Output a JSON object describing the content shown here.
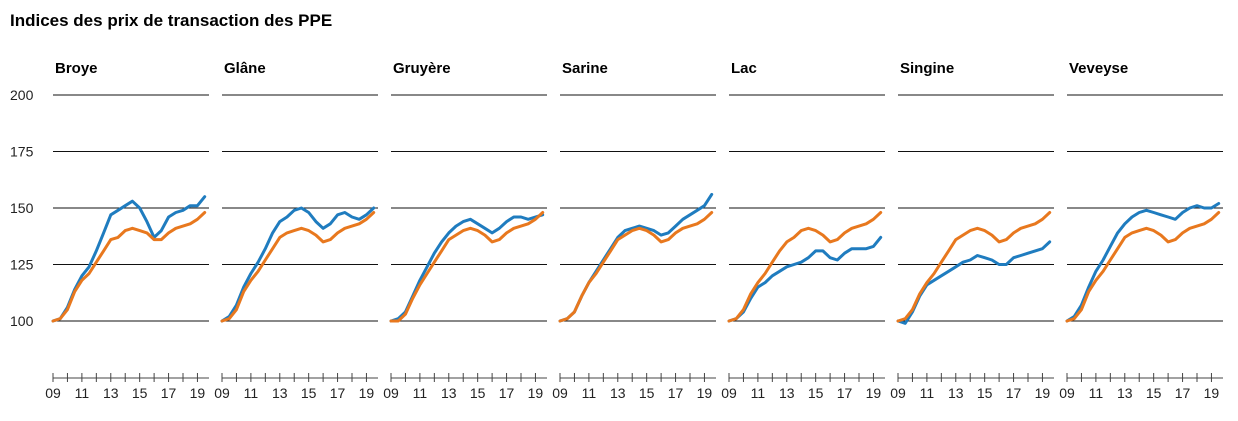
{
  "chart_data": {
    "type": "line",
    "title": "Indices des prix de transaction des PPE",
    "ylim": [
      80,
      205
    ],
    "yticks": [
      100,
      125,
      150,
      175,
      200
    ],
    "xlim": [
      2009,
      2019.8
    ],
    "xticks": [
      2009,
      2010,
      2011,
      2012,
      2013,
      2014,
      2015,
      2016,
      2017,
      2018,
      2019
    ],
    "xtick_labels": [
      "09",
      "",
      "11",
      "",
      "13",
      "",
      "15",
      "",
      "17",
      "",
      "19"
    ],
    "grid": true,
    "series_colors": [
      "#1f7cbf",
      "#e8781e"
    ],
    "panels": [
      {
        "title": "Broye",
        "series": [
          {
            "color": "#1f7cbf",
            "x": [
              2009,
              2009.5,
              2010,
              2010.5,
              2011,
              2011.5,
              2012,
              2012.5,
              2013,
              2013.5,
              2014,
              2014.5,
              2015,
              2015.5,
              2016,
              2016.5,
              2017,
              2017.5,
              2018,
              2018.5,
              2019,
              2019.5
            ],
            "y": [
              100,
              101,
              106,
              114,
              120,
              124,
              131,
              139,
              147,
              149,
              151,
              153,
              150,
              144,
              137,
              140,
              146,
              148,
              149,
              151,
              151,
              155
            ]
          },
          {
            "color": "#e8781e",
            "x": [
              2009,
              2009.5,
              2010,
              2010.5,
              2011,
              2011.5,
              2012,
              2012.5,
              2013,
              2013.5,
              2014,
              2014.5,
              2015,
              2015.5,
              2016,
              2016.5,
              2017,
              2017.5,
              2018,
              2018.5,
              2019,
              2019.5
            ],
            "y": [
              100,
              101,
              105,
              113,
              118,
              121,
              126,
              131,
              136,
              137,
              140,
              141,
              140,
              139,
              136,
              136,
              139,
              141,
              142,
              143,
              145,
              148
            ]
          }
        ]
      },
      {
        "title": "Glâne",
        "series": [
          {
            "color": "#1f7cbf",
            "x": [
              2009,
              2009.5,
              2010,
              2010.5,
              2011,
              2011.5,
              2012,
              2012.5,
              2013,
              2013.5,
              2014,
              2014.5,
              2015,
              2015.5,
              2016,
              2016.5,
              2017,
              2017.5,
              2018,
              2018.5,
              2019,
              2019.5
            ],
            "y": [
              100,
              102,
              107,
              115,
              121,
              126,
              132,
              139,
              144,
              146,
              149,
              150,
              148,
              144,
              141,
              143,
              147,
              148,
              146,
              145,
              147,
              150
            ]
          },
          {
            "color": "#e8781e",
            "x": [
              2009,
              2009.5,
              2010,
              2010.5,
              2011,
              2011.5,
              2012,
              2012.5,
              2013,
              2013.5,
              2014,
              2014.5,
              2015,
              2015.5,
              2016,
              2016.5,
              2017,
              2017.5,
              2018,
              2018.5,
              2019,
              2019.5
            ],
            "y": [
              100,
              101,
              105,
              113,
              118,
              122,
              127,
              132,
              137,
              139,
              140,
              141,
              140,
              138,
              135,
              136,
              139,
              141,
              142,
              143,
              145,
              148
            ]
          }
        ]
      },
      {
        "title": "Gruyère",
        "series": [
          {
            "color": "#1f7cbf",
            "x": [
              2009,
              2009.5,
              2010,
              2010.5,
              2011,
              2011.5,
              2012,
              2012.5,
              2013,
              2013.5,
              2014,
              2014.5,
              2015,
              2015.5,
              2016,
              2016.5,
              2017,
              2017.5,
              2018,
              2018.5,
              2019,
              2019.5
            ],
            "y": [
              100,
              101,
              104,
              111,
              118,
              124,
              130,
              135,
              139,
              142,
              144,
              145,
              143,
              141,
              139,
              141,
              144,
              146,
              146,
              145,
              146,
              147
            ]
          },
          {
            "color": "#e8781e",
            "x": [
              2009,
              2009.5,
              2010,
              2010.5,
              2011,
              2011.5,
              2012,
              2012.5,
              2013,
              2013.5,
              2014,
              2014.5,
              2015,
              2015.5,
              2016,
              2016.5,
              2017,
              2017.5,
              2018,
              2018.5,
              2019,
              2019.5
            ],
            "y": [
              100,
              100,
              103,
              110,
              116,
              121,
              126,
              131,
              136,
              138,
              140,
              141,
              140,
              138,
              135,
              136,
              139,
              141,
              142,
              143,
              145,
              148
            ]
          }
        ]
      },
      {
        "title": "Sarine",
        "series": [
          {
            "color": "#1f7cbf",
            "x": [
              2009,
              2009.5,
              2010,
              2010.5,
              2011,
              2011.5,
              2012,
              2012.5,
              2013,
              2013.5,
              2014,
              2014.5,
              2015,
              2015.5,
              2016,
              2016.5,
              2017,
              2017.5,
              2018,
              2018.5,
              2019,
              2019.5
            ],
            "y": [
              100,
              101,
              104,
              111,
              117,
              122,
              127,
              132,
              137,
              140,
              141,
              142,
              141,
              140,
              138,
              139,
              142,
              145,
              147,
              149,
              151,
              156
            ]
          },
          {
            "color": "#e8781e",
            "x": [
              2009,
              2009.5,
              2010,
              2010.5,
              2011,
              2011.5,
              2012,
              2012.5,
              2013,
              2013.5,
              2014,
              2014.5,
              2015,
              2015.5,
              2016,
              2016.5,
              2017,
              2017.5,
              2018,
              2018.5,
              2019,
              2019.5
            ],
            "y": [
              100,
              101,
              104,
              111,
              117,
              121,
              126,
              131,
              136,
              138,
              140,
              141,
              140,
              138,
              135,
              136,
              139,
              141,
              142,
              143,
              145,
              148
            ]
          }
        ]
      },
      {
        "title": "Lac",
        "series": [
          {
            "color": "#1f7cbf",
            "x": [
              2009,
              2009.5,
              2010,
              2010.5,
              2011,
              2011.5,
              2012,
              2012.5,
              2013,
              2013.5,
              2014,
              2014.5,
              2015,
              2015.5,
              2016,
              2016.5,
              2017,
              2017.5,
              2018,
              2018.5,
              2019,
              2019.5
            ],
            "y": [
              100,
              101,
              104,
              110,
              115,
              117,
              120,
              122,
              124,
              125,
              126,
              128,
              131,
              131,
              128,
              127,
              130,
              132,
              132,
              132,
              133,
              137
            ]
          },
          {
            "color": "#e8781e",
            "x": [
              2009,
              2009.5,
              2010,
              2010.5,
              2011,
              2011.5,
              2012,
              2012.5,
              2013,
              2013.5,
              2014,
              2014.5,
              2015,
              2015.5,
              2016,
              2016.5,
              2017,
              2017.5,
              2018,
              2018.5,
              2019,
              2019.5
            ],
            "y": [
              100,
              101,
              105,
              112,
              117,
              121,
              126,
              131,
              135,
              137,
              140,
              141,
              140,
              138,
              135,
              136,
              139,
              141,
              142,
              143,
              145,
              148
            ]
          }
        ]
      },
      {
        "title": "Singine",
        "series": [
          {
            "color": "#1f7cbf",
            "x": [
              2009,
              2009.5,
              2010,
              2010.5,
              2011,
              2011.5,
              2012,
              2012.5,
              2013,
              2013.5,
              2014,
              2014.5,
              2015,
              2015.5,
              2016,
              2016.5,
              2017,
              2017.5,
              2018,
              2018.5,
              2019,
              2019.5
            ],
            "y": [
              100,
              99,
              104,
              111,
              116,
              118,
              120,
              122,
              124,
              126,
              127,
              129,
              128,
              127,
              125,
              125,
              128,
              129,
              130,
              131,
              132,
              135
            ]
          },
          {
            "color": "#e8781e",
            "x": [
              2009,
              2009.5,
              2010,
              2010.5,
              2011,
              2011.5,
              2012,
              2012.5,
              2013,
              2013.5,
              2014,
              2014.5,
              2015,
              2015.5,
              2016,
              2016.5,
              2017,
              2017.5,
              2018,
              2018.5,
              2019,
              2019.5
            ],
            "y": [
              100,
              101,
              105,
              112,
              117,
              121,
              126,
              131,
              136,
              138,
              140,
              141,
              140,
              138,
              135,
              136,
              139,
              141,
              142,
              143,
              145,
              148
            ]
          }
        ]
      },
      {
        "title": "Veveyse",
        "series": [
          {
            "color": "#1f7cbf",
            "x": [
              2009,
              2009.5,
              2010,
              2010.5,
              2011,
              2011.5,
              2012,
              2012.5,
              2013,
              2013.5,
              2014,
              2014.5,
              2015,
              2015.5,
              2016,
              2016.5,
              2017,
              2017.5,
              2018,
              2018.5,
              2019,
              2019.5
            ],
            "y": [
              100,
              102,
              107,
              115,
              122,
              127,
              133,
              139,
              143,
              146,
              148,
              149,
              148,
              147,
              146,
              145,
              148,
              150,
              151,
              150,
              150,
              152
            ]
          },
          {
            "color": "#e8781e",
            "x": [
              2009,
              2009.5,
              2010,
              2010.5,
              2011,
              2011.5,
              2012,
              2012.5,
              2013,
              2013.5,
              2014,
              2014.5,
              2015,
              2015.5,
              2016,
              2016.5,
              2017,
              2017.5,
              2018,
              2018.5,
              2019,
              2019.5
            ],
            "y": [
              100,
              101,
              105,
              113,
              118,
              122,
              127,
              132,
              137,
              139,
              140,
              141,
              140,
              138,
              135,
              136,
              139,
              141,
              142,
              143,
              145,
              148
            ]
          }
        ]
      }
    ]
  }
}
